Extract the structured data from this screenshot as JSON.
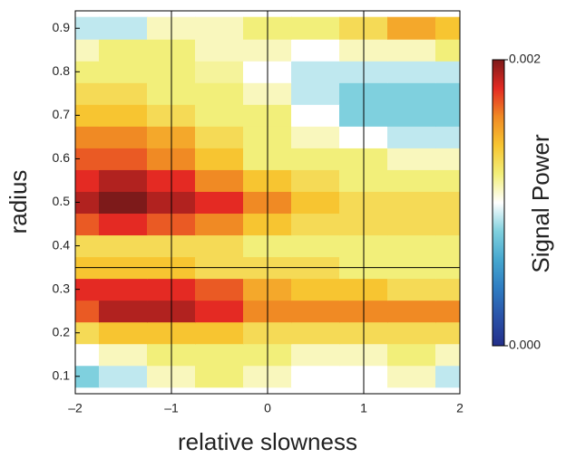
{
  "chart_data": {
    "type": "heatmap",
    "x_label": "relative slowness",
    "y_label": "radius",
    "colorbar_label": "Signal Power",
    "x": [
      -2,
      -1.5,
      -1,
      -0.5,
      0,
      0.5,
      1,
      1.5,
      2
    ],
    "y": [
      0.1,
      0.15,
      0.2,
      0.25,
      0.3,
      0.35,
      0.4,
      0.45,
      0.5,
      0.55,
      0.6,
      0.65,
      0.7,
      0.75,
      0.8,
      0.85,
      0.9
    ],
    "z": [
      [
        0.0008,
        0.0009,
        0.0011,
        0.0012,
        0.0011,
        0.001,
        0.001,
        0.0011,
        0.0009
      ],
      [
        0.001,
        0.0011,
        0.0012,
        0.0012,
        0.0012,
        0.0011,
        0.0011,
        0.0012,
        0.0011
      ],
      [
        0.0013,
        0.0014,
        0.0014,
        0.0014,
        0.0013,
        0.0013,
        0.0013,
        0.0013,
        0.0013
      ],
      [
        0.0017,
        0.0019,
        0.0019,
        0.0018,
        0.0016,
        0.0016,
        0.0016,
        0.0016,
        0.0016
      ],
      [
        0.0018,
        0.0018,
        0.0018,
        0.0017,
        0.0015,
        0.0014,
        0.0014,
        0.0013,
        0.0013
      ],
      [
        0.0014,
        0.0014,
        0.0014,
        0.0013,
        0.0013,
        0.0013,
        0.0012,
        0.0012,
        0.0012
      ],
      [
        0.0013,
        0.0013,
        0.0013,
        0.0013,
        0.0012,
        0.0012,
        0.0012,
        0.0012,
        0.0012
      ],
      [
        0.0017,
        0.0018,
        0.0017,
        0.0016,
        0.0014,
        0.0013,
        0.0013,
        0.0013,
        0.0013
      ],
      [
        0.0019,
        0.002,
        0.0019,
        0.0018,
        0.0016,
        0.0014,
        0.0013,
        0.0013,
        0.0013
      ],
      [
        0.0018,
        0.0019,
        0.0018,
        0.0016,
        0.0014,
        0.0013,
        0.0012,
        0.0012,
        0.0012
      ],
      [
        0.0017,
        0.0017,
        0.0016,
        0.0014,
        0.0012,
        0.0012,
        0.0012,
        0.0011,
        0.0011
      ],
      [
        0.0016,
        0.0016,
        0.0015,
        0.0013,
        0.0012,
        0.0011,
        0.001,
        0.0009,
        0.0009
      ],
      [
        0.0014,
        0.0014,
        0.0013,
        0.0012,
        0.0012,
        0.001,
        0.0008,
        0.0008,
        0.0008
      ],
      [
        0.0013,
        0.0013,
        0.0012,
        0.0012,
        0.0011,
        0.0009,
        0.0008,
        0.0008,
        0.0008
      ],
      [
        0.0012,
        0.0012,
        0.0012,
        0.00115,
        0.001,
        0.0009,
        0.0009,
        0.0009,
        0.0009
      ],
      [
        0.0011,
        0.0012,
        0.0012,
        0.0011,
        0.0011,
        0.001,
        0.0011,
        0.0011,
        0.0012
      ],
      [
        0.0009,
        0.0009,
        0.0011,
        0.0011,
        0.0012,
        0.0012,
        0.0013,
        0.0015,
        0.0014
      ]
    ],
    "xlim": [
      -2,
      2
    ],
    "ylim": [
      0.06,
      0.94
    ],
    "xticks": [
      {
        "value": -2,
        "label": "–2"
      },
      {
        "value": -1,
        "label": "–1"
      },
      0,
      1,
      2
    ],
    "yticks": [
      0.1,
      0.2,
      0.3,
      0.4,
      0.5,
      0.6,
      0.7,
      0.8,
      0.9
    ],
    "vlines": [
      -1,
      0,
      1
    ],
    "hlines": [
      0.35
    ],
    "clim": [
      0,
      0.002
    ],
    "cticks": [
      {
        "value": 0,
        "label": "0.000"
      },
      {
        "value": 0.002,
        "label": "0.002"
      }
    ],
    "colormap": [
      "#232f8a",
      "#2a52a8",
      "#2e7cc2",
      "#45a7cf",
      "#7fd0de",
      "#ffffff",
      "#f2ef7a",
      "#f7c531",
      "#f08a24",
      "#e42a23",
      "#7d1a1a"
    ]
  }
}
